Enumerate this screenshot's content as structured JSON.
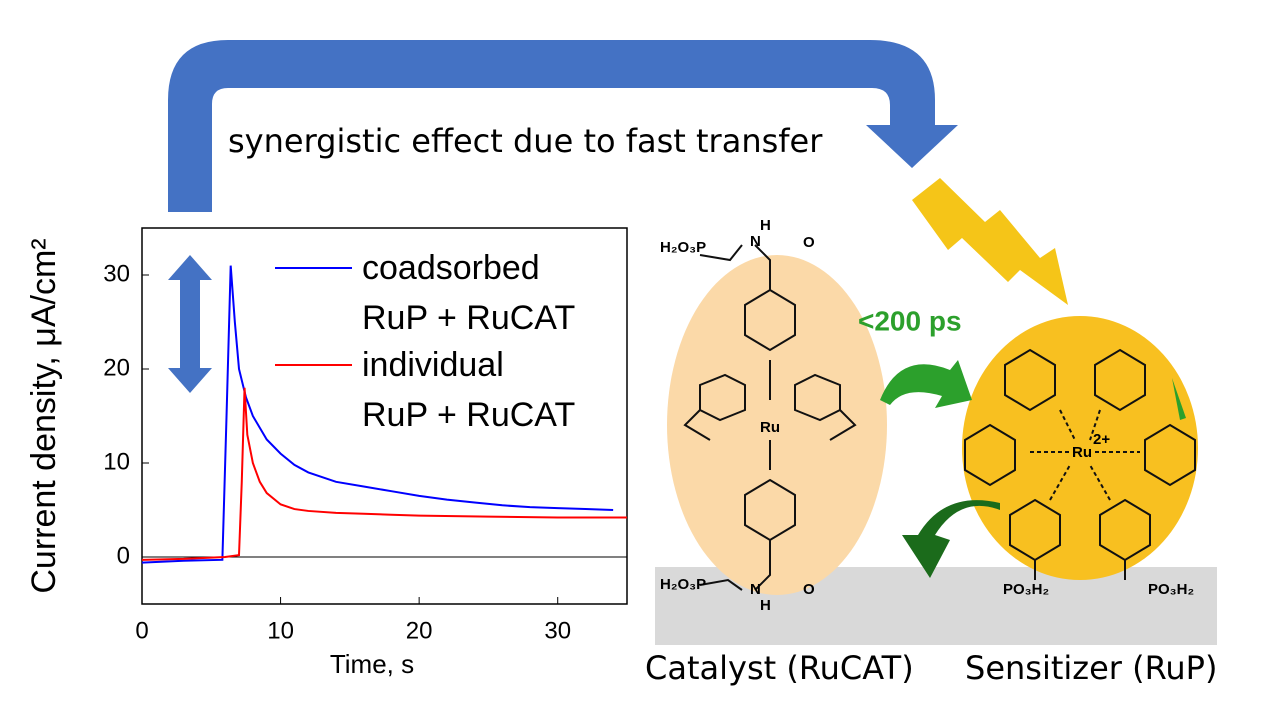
{
  "chart_data": {
    "type": "line",
    "x_label": "Time, s",
    "y_label": "Current density, μA/cm²",
    "xlim": [
      0,
      35
    ],
    "ylim": [
      -5,
      35
    ],
    "xticks": [
      0,
      10,
      20,
      30
    ],
    "yticks": [
      0,
      10,
      20,
      30
    ],
    "series": [
      {
        "name": "coadsorbed\nRuP + RuCAT",
        "color": "#0000ff",
        "x": [
          0,
          3,
          5.8,
          6.1,
          6.4,
          6.7,
          7,
          7.5,
          8,
          9,
          10,
          11,
          12,
          14,
          16,
          18,
          20,
          22,
          24,
          26,
          28,
          30,
          32,
          34
        ],
        "values": [
          -0.6,
          -0.4,
          -0.3,
          15,
          31,
          25,
          20,
          17,
          15,
          12.5,
          11,
          9.8,
          9,
          8,
          7.5,
          7,
          6.5,
          6.1,
          5.8,
          5.5,
          5.3,
          5.2,
          5.1,
          5
        ]
      },
      {
        "name": "individual\nRuP + RuCAT",
        "color": "#ff0000",
        "x": [
          0,
          3,
          6,
          7,
          7.2,
          7.4,
          7.6,
          8,
          8.5,
          9,
          10,
          11,
          12,
          14,
          16,
          18,
          20,
          25,
          30,
          35
        ],
        "values": [
          -0.3,
          -0.2,
          0,
          0.2,
          8,
          18,
          13,
          10,
          8,
          6.8,
          5.6,
          5.1,
          4.9,
          4.7,
          4.6,
          4.5,
          4.4,
          4.3,
          4.2,
          4.2
        ]
      }
    ]
  },
  "diagram": {
    "arrow_label": "synergistic effect due to fast transfer",
    "transfer_time": "<200 ps",
    "catalyst_label": "Catalyst (RuCAT)",
    "sensitizer_label": "Sensitizer (RuP)",
    "catalyst_atoms": {
      "top_group": "H₂O₃P",
      "top_nh": "N",
      "top_h": "H",
      "top_o": "O",
      "metal": "Ru",
      "bottom_group": "H₂O₃P",
      "bottom_nh": "N",
      "bottom_h": "H",
      "bottom_o": "O"
    },
    "sensitizer_atoms": {
      "metal": "Ru",
      "charge": "2+",
      "group_left": "PO₃H₂",
      "group_right": "PO₃H₂"
    }
  }
}
